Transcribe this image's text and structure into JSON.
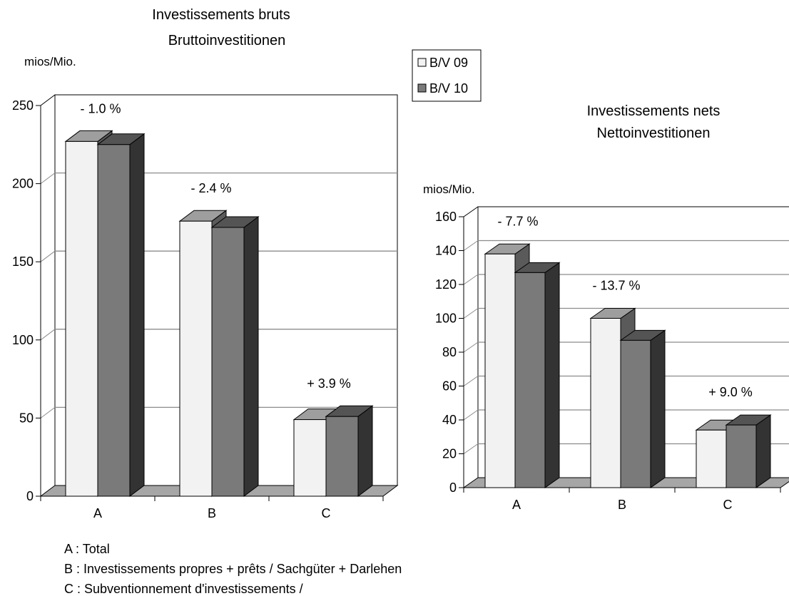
{
  "colors": {
    "series_front": [
      "#f2f2f2",
      "#7a7a7a"
    ],
    "series_top": [
      "#9e9e9e",
      "#545454"
    ],
    "series_side": [
      "#5a5a5a",
      "#333333"
    ],
    "floor": "#a6a6a6",
    "gridline": "#8c8c8c"
  },
  "legend": {
    "placement": "top-center",
    "items": [
      "B/V 09",
      "B/V 10"
    ]
  },
  "notes": [
    "A : Total",
    "B : Investissements propres + prêts / Sachgüter + Darlehen",
    "C : Subventionnement d'investissements /"
  ],
  "chart_data": [
    {
      "type": "bar",
      "title_lines": [
        "Investissements bruts",
        "Bruttoinvestitionen"
      ],
      "ylabel": "mios/Mio.",
      "categories": [
        "A",
        "B",
        "C"
      ],
      "series": [
        {
          "name": "B/V 09",
          "values": [
            227,
            176,
            49
          ]
        },
        {
          "name": "B/V 10",
          "values": [
            225,
            172,
            51
          ]
        }
      ],
      "changes": [
        "- 1.0 %",
        "- 2.4 %",
        "+ 3.9 %"
      ],
      "ylim": [
        0,
        250
      ],
      "yticks": [
        0,
        50,
        100,
        150,
        200,
        250
      ],
      "grid": true
    },
    {
      "type": "bar",
      "title_lines": [
        "Investissements nets",
        "Nettoinvestitionen"
      ],
      "ylabel": "mios/Mio.",
      "categories": [
        "A",
        "B",
        "C"
      ],
      "series": [
        {
          "name": "B/V 09",
          "values": [
            138,
            100,
            34
          ]
        },
        {
          "name": "B/V 10",
          "values": [
            127,
            87,
            37
          ]
        }
      ],
      "changes": [
        "- 7.7 %",
        "- 13.7 %",
        "+ 9.0 %"
      ],
      "ylim": [
        0,
        160
      ],
      "yticks": [
        0,
        20,
        40,
        60,
        80,
        100,
        120,
        140,
        160
      ],
      "grid": true
    }
  ]
}
